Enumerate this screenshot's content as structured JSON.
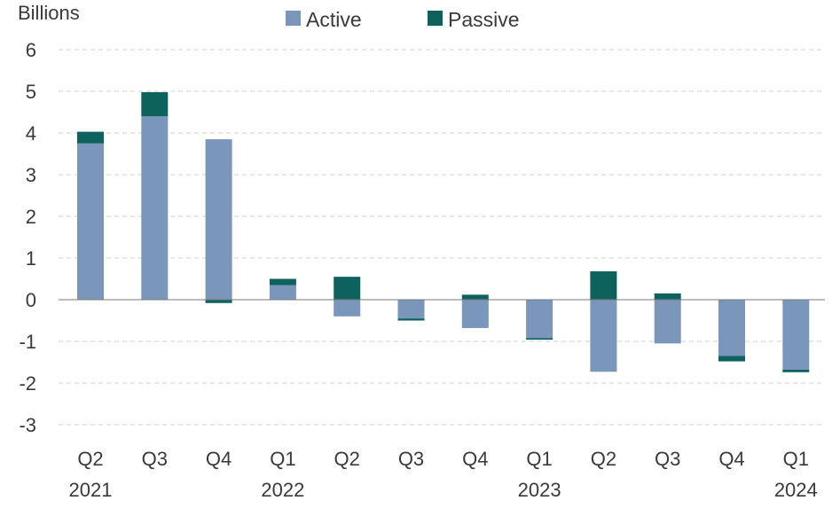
{
  "chart_data": {
    "type": "bar",
    "stacked": true,
    "unit_label": "Billions",
    "categories": [
      "Q2",
      "Q3",
      "Q4",
      "Q1",
      "Q2",
      "Q3",
      "Q4",
      "Q1",
      "Q2",
      "Q3",
      "Q4",
      "Q1"
    ],
    "year_labels": [
      "2021",
      "",
      "",
      "2022",
      "",
      "",
      "",
      "2023",
      "",
      "",
      "",
      "2024"
    ],
    "series": [
      {
        "name": "Active",
        "color": "#7a96bb",
        "values": [
          3.75,
          4.4,
          3.85,
          0.35,
          -0.4,
          -0.45,
          -0.68,
          -0.92,
          -1.73,
          -1.05,
          -1.35,
          -1.68
        ]
      },
      {
        "name": "Passive",
        "color": "#0d625e",
        "values": [
          0.28,
          0.58,
          -0.08,
          0.15,
          0.55,
          -0.05,
          0.12,
          -0.04,
          0.68,
          0.15,
          -0.13,
          -0.06
        ]
      }
    ],
    "ylim": [
      -3,
      6
    ],
    "yticks": [
      6,
      5,
      4,
      3,
      2,
      1,
      0,
      -1,
      -2,
      -3
    ],
    "grid": true,
    "legend_position": "top"
  }
}
